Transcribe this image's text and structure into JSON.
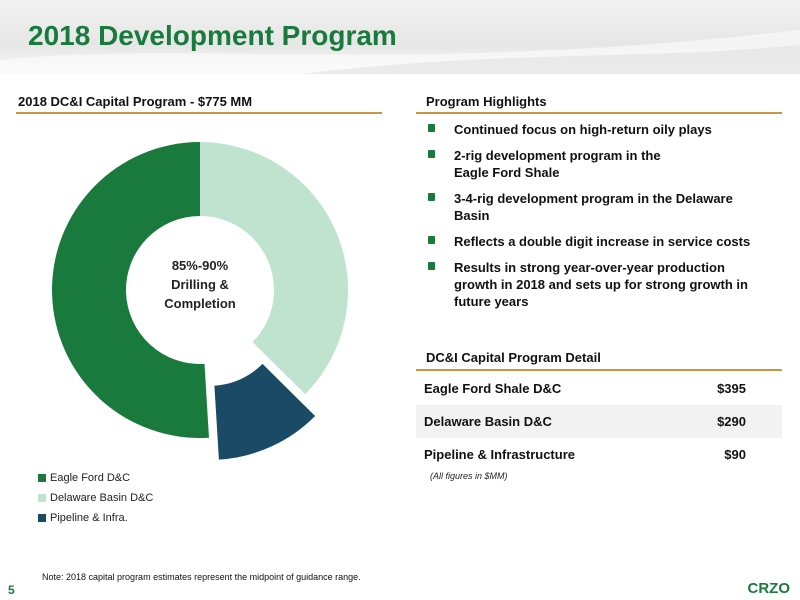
{
  "header": {
    "title": "2018 Development Program"
  },
  "left_panel": {
    "title": "2018 DC&I Capital Program - $775 MM"
  },
  "chart_data": {
    "type": "pie",
    "subtype": "donut",
    "title": "",
    "center_label": [
      "85%-90%",
      "Drilling &",
      "Completion"
    ],
    "labels": [
      "Eagle Ford D&C",
      "Delaware Basin D&C",
      "Pipeline & Infra."
    ],
    "values": [
      395,
      290,
      90
    ],
    "colors": [
      "#1a7a3e",
      "#bfe3cf",
      "#1a4a66"
    ],
    "exploded": [
      false,
      false,
      true
    ],
    "legend_position": "bottom-left"
  },
  "legend": {
    "items": [
      {
        "label": "Eagle Ford D&C",
        "color": "#1a7a3e"
      },
      {
        "label": "Delaware Basin D&C",
        "color": "#bfe3cf"
      },
      {
        "label": "Pipeline & Infra.",
        "color": "#1a4a66"
      }
    ]
  },
  "highlights": {
    "title": "Program Highlights",
    "items": [
      "Continued focus on high-return oily plays",
      "2-rig development program in the Eagle Ford Shale",
      "3-4-rig development program in the Delaware Basin",
      "Reflects a double digit increase in service costs",
      "Results in strong year-over-year production growth in 2018 and sets up for strong growth in future years"
    ]
  },
  "detail": {
    "title": "DC&I Capital Program Detail",
    "rows": [
      {
        "label": "Eagle Ford Shale D&C",
        "value": "$395"
      },
      {
        "label": "Delaware Basin D&C",
        "value": "$290"
      },
      {
        "label": "Pipeline & Infrastructure",
        "value": "$90"
      }
    ],
    "note": "(All figures in $MM)"
  },
  "footer": {
    "note": "Note: 2018 capital program estimates represent the midpoint of guidance range.",
    "page_number": "5",
    "logo": "CRZO"
  },
  "colors": {
    "brand_green": "#1a7a3e",
    "accent_gold": "#c8963c"
  }
}
